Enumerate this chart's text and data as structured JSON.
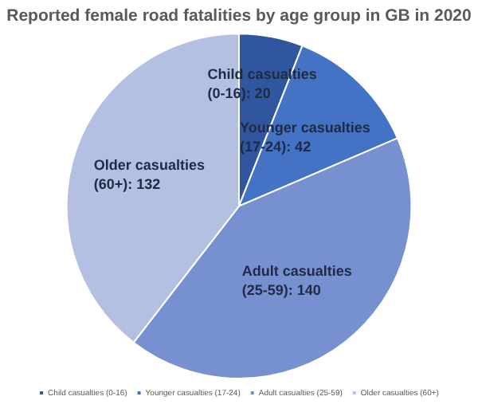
{
  "chart_data": {
    "type": "pie",
    "title": "Reported female road fatalities by age group in GB in 2020",
    "categories": [
      "Child casualties (0-16)",
      "Younger casualties (17-24)",
      "Adult casualties (25-59)",
      "Older casualties (60+)"
    ],
    "values": [
      20,
      42,
      140,
      132
    ],
    "value_labels": [
      "Child casualties (0-16): 20",
      "Younger casualties (17-24): 42",
      "Adult casualties (25-59): 140",
      "Older casualties (60+): 132"
    ],
    "colors": [
      "#3056a0",
      "#4472c4",
      "#7690d0",
      "#b3c0e2"
    ],
    "legend": "bottom"
  }
}
